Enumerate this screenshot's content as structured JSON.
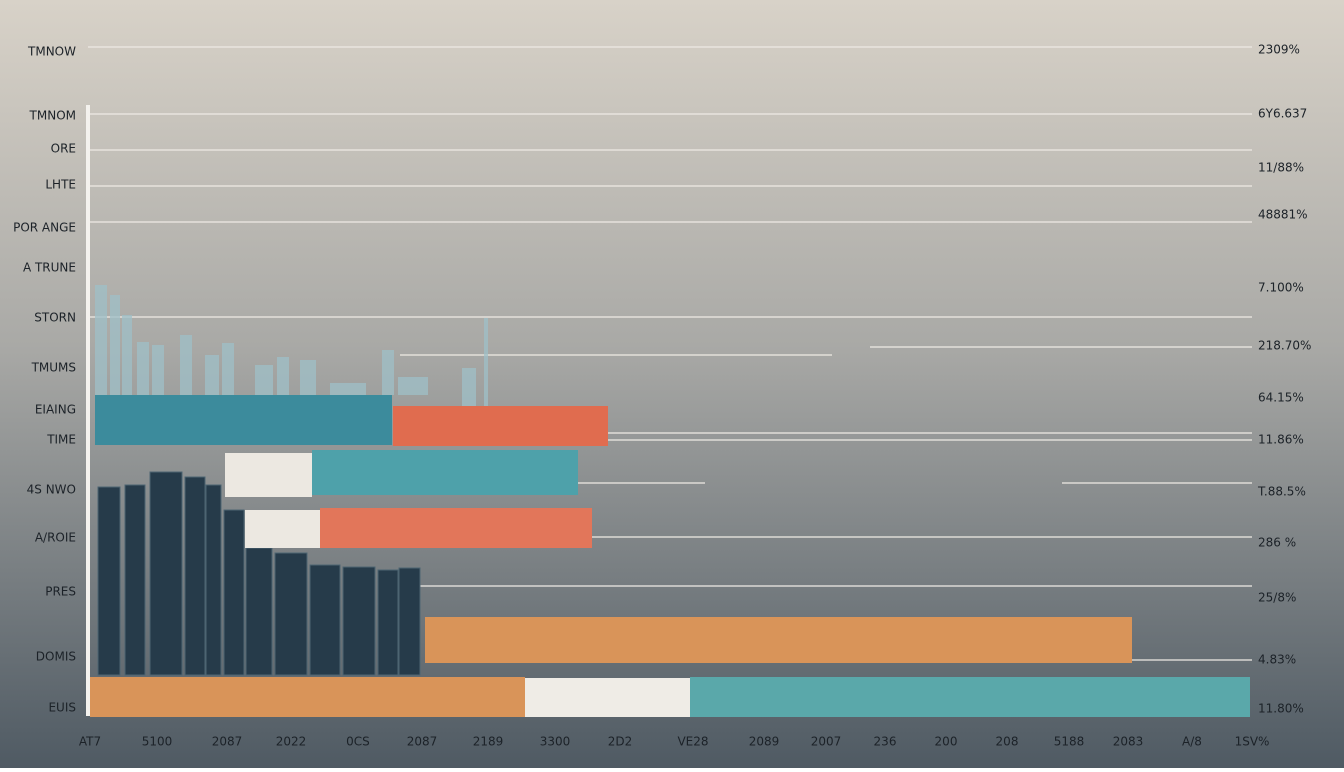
{
  "left_labels": [
    "TMNOW",
    "TMNOM",
    "ORE",
    "LHTE",
    "POR ANGE",
    "A TRUNE",
    "STORN",
    "TMUMS",
    "EIAING",
    "TIME",
    "4S NWO",
    "A/ROIE",
    "PRES",
    "DOMIS",
    "EUIS"
  ],
  "right_labels": [
    "2309%",
    "6Y6.637",
    "11/88%",
    "48881%",
    "7.100%",
    "218.70%",
    "64.15%",
    "11.86%",
    "T.88.5%",
    "286 %",
    "25/8%",
    "4.83%",
    "11.80%"
  ],
  "bottom_labels": [
    "AT7",
    "5100",
    "2087",
    "2022",
    "0CS",
    "2087",
    "2189",
    "3300",
    "2D2",
    "VE28",
    "2089",
    "2007",
    "236",
    "200",
    "208",
    "5188",
    "2083",
    "A/8",
    "1SV%"
  ]
}
